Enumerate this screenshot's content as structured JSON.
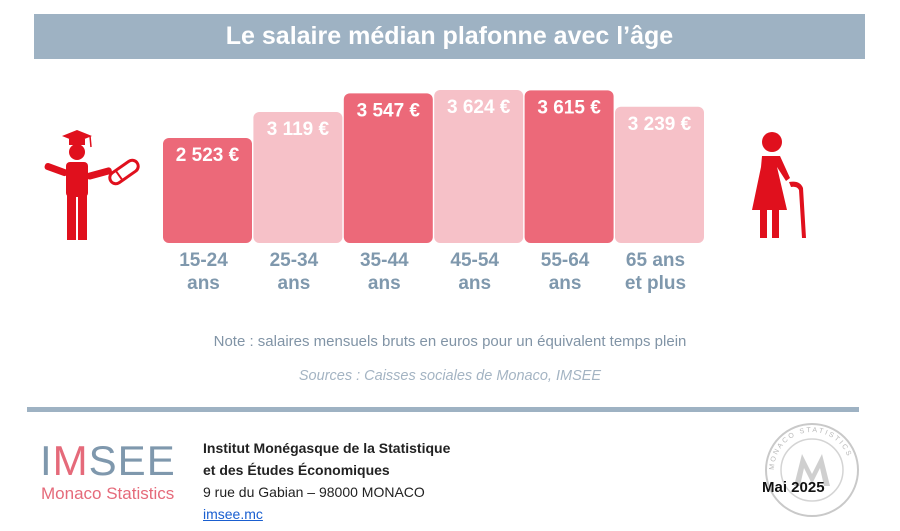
{
  "header": {
    "title": "Le salaire médian plafonne avec l’âge"
  },
  "chart_data": {
    "type": "bar",
    "title": "Le salaire médian plafonne avec l’âge",
    "categories": [
      [
        "15-24",
        "ans"
      ],
      [
        "25-34",
        "ans"
      ],
      [
        "35-44",
        "ans"
      ],
      [
        "45-54",
        "ans"
      ],
      [
        "55-64",
        "ans"
      ],
      [
        "65 ans",
        "et plus"
      ]
    ],
    "values": [
      2523,
      3119,
      3547,
      3624,
      3615,
      3239
    ],
    "value_labels": [
      "2 523 €",
      "3 119 €",
      "3 547 €",
      "3 624 €",
      "3 615 €",
      "3 239 €"
    ],
    "unit": "€",
    "colors": [
      "#ec6979",
      "#f6c1c8",
      "#ec6979",
      "#f6c1c8",
      "#ec6979",
      "#f6c1c8"
    ],
    "category_color": "#7f98ad",
    "grid": false,
    "legend": "none"
  },
  "footer": {
    "note": "Note : salaires mensuels bruts en euros pour un équivalent temps plein",
    "sources": "Sources : Caisses sociales de Monaco, IMSEE",
    "logo_main_a": "I",
    "logo_main_m": "M",
    "logo_main_b": "SEE",
    "logo_sub": "Monaco Statistics",
    "inst_line1": "Institut Monégasque de la Statistique",
    "inst_line2": "et des Études Économiques",
    "address": "9 rue du Gabian – 98000 MONACO",
    "link": "imsee.mc",
    "date": "Mai 2025",
    "seal_text": "MONACO STATISTICS"
  }
}
